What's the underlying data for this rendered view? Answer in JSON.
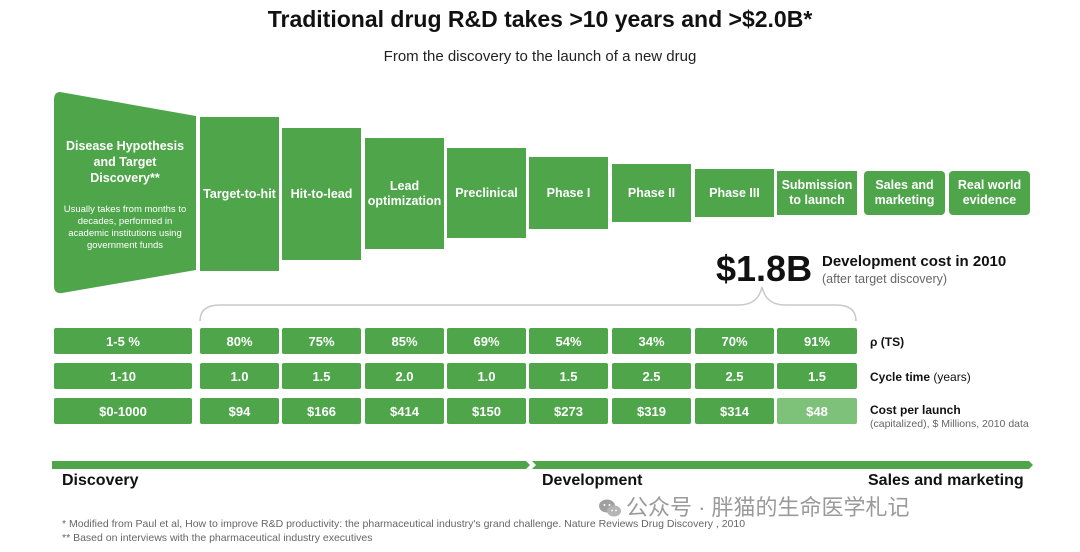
{
  "title": "Traditional drug R&D takes >10 years and >$2.0B*",
  "subtitle": "From the discovery to the launch of a new drug",
  "colors": {
    "green": "#4ea54a",
    "light_green": "#7dc278",
    "text": "#111111",
    "muted": "#666666"
  },
  "first_stage": {
    "title": "Disease Hypothesis and Target Discovery**",
    "note": "Usually takes from months to decades, performed in academic institutions using government funds"
  },
  "stages": [
    "Target-to-hit",
    "Hit-to-lead",
    "Lead optimization",
    "Preclinical",
    "Phase I",
    "Phase II",
    "Phase III",
    "Submission to launch",
    "Sales and marketing",
    "Real world evidence"
  ],
  "dev_cost": {
    "value": "$1.8B",
    "label": "Development cost in 2010",
    "sub": "(after target discovery)"
  },
  "rows": {
    "pts": {
      "label": "ρ (TS)",
      "first": "1-5 %",
      "values": [
        "80%",
        "75%",
        "85%",
        "69%",
        "54%",
        "34%",
        "70%",
        "91%"
      ]
    },
    "cycle": {
      "label_bold": "Cycle time",
      "label_normal": "(years)",
      "first": "1-10",
      "values": [
        "1.0",
        "1.5",
        "2.0",
        "1.0",
        "1.5",
        "2.5",
        "2.5",
        "1.5"
      ]
    },
    "cost": {
      "label": "Cost per launch",
      "sub": "(capitalized), $ Millions, 2010 data",
      "first": "$0-1000",
      "values": [
        "$94",
        "$166",
        "$414",
        "$150",
        "$273",
        "$319",
        "$314",
        "$48"
      ]
    }
  },
  "phases": {
    "discovery": "Discovery",
    "development": "Development",
    "sales": "Sales and marketing"
  },
  "footnotes": [
    "* Modified from Paul et al, How to improve R&D productivity: the pharmaceutical industry's grand challenge. Nature Reviews Drug Discovery , 2010",
    "** Based on interviews with the pharmaceutical industry executives"
  ],
  "watermark": "公众号 · 胖猫的生命医学札记"
}
